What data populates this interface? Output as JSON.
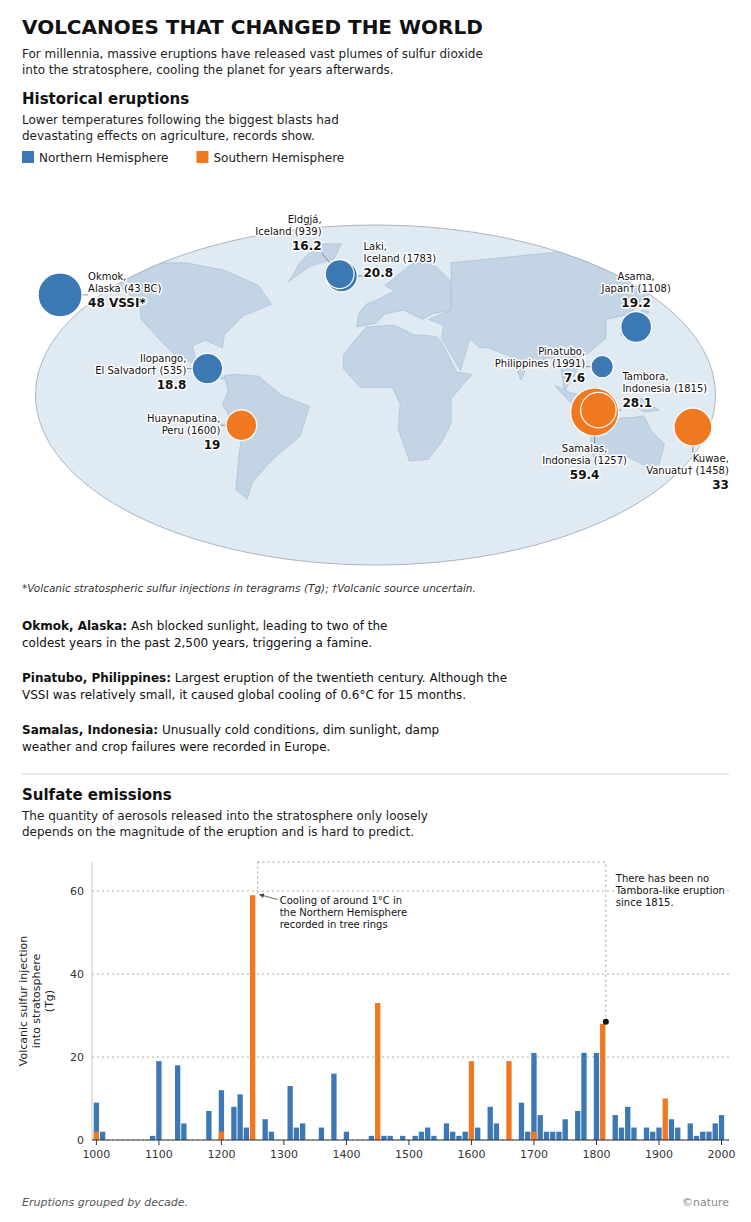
{
  "title": "VOLCANOES THAT CHANGED THE WORLD",
  "subtitle": "For millennia, massive eruptions have released vast plumes of sulfur dioxide\ninto the stratosphere, cooling the planet for years afterwards.",
  "source": "©nature",
  "chart_data": [
    {
      "type": "map",
      "title": "Historical eruptions",
      "subtitle": "Lower temperatures following the biggest blasts had\ndevastating effects on agriculture, records show.",
      "xlim": [
        -180,
        180
      ],
      "ylim": [
        -90,
        90
      ],
      "tick_labels": false,
      "legend": "top left",
      "series": [
        {
          "name": "Northern Hemisphere",
          "color": "#3c78b4",
          "labels": [
            "Okmok,\nAlaska (43 BC)",
            "Eldgjá,\nIceland (939)",
            "Laki,\nIceland (1783)",
            "Asama,\nJapan† (1108)",
            "Ilopango,\nEl Salvador† (535)",
            "Pinatubo,\nPhilippines (1991)"
          ],
          "values": [
            48,
            16.2,
            20.8,
            19.2,
            18.8,
            7.6
          ],
          "value_labels": [
            "48 VSSI*",
            "16.2",
            "20.8",
            "19.2",
            "18.8",
            "7.6"
          ],
          "lon": [
            -167,
            -19,
            -18,
            138,
            -89,
            120
          ],
          "lat": [
            53,
            64,
            63,
            36,
            14,
            15
          ]
        },
        {
          "name": "Southern Hemisphere",
          "color": "#f07820",
          "labels": [
            "Kuwae,\nVanuatu† (1458)",
            "Huaynaputina,\nPeru (1600)",
            "Samalas,\nIndonesia (1257)",
            "Tambora,\nIndonesia (1815)"
          ],
          "values": [
            33,
            19,
            59.4,
            28.1
          ],
          "value_labels": [
            "33",
            "19",
            "59.4",
            "28.1"
          ],
          "lon": [
            168,
            -71,
            116,
            118
          ],
          "lat": [
            -17,
            -16,
            -9,
            -8
          ]
        }
      ],
      "footnote": "*Volcanic stratospheric sulfur injections in teragrams (Tg); †Volcanic source uncertain.",
      "annotations": [
        {
          "bold": "Okmok, Alaska:",
          "text": " Ash blocked sunlight, leading to two of the\ncoldest years in the past 2,500 years, triggering a famine."
        },
        {
          "bold": "Pinatubo, Philippines:",
          "text": " Largest eruption of the twentieth century. Although the\nVSSI was relatively small, it caused global cooling of 0.6°C for 15 months."
        },
        {
          "bold": "Samalas, Indonesia:",
          "text": " Unusually cold conditions, dim sunlight, damp\nweather and crop failures were recorded in Europe."
        }
      ]
    },
    {
      "type": "bar",
      "title": "Sulfate emissions",
      "subtitle": "The quantity of aerosols released into the stratosphere only loosely\ndepends on the magnitude of the eruption and is hard to predict.",
      "ylabel": "Volcanic sulfur injection\ninto stratosphere\n(Tg)",
      "x": [
        1000,
        1010,
        1020,
        1030,
        1040,
        1050,
        1060,
        1070,
        1080,
        1090,
        1100,
        1110,
        1120,
        1130,
        1140,
        1150,
        1160,
        1170,
        1180,
        1190,
        1200,
        1210,
        1220,
        1230,
        1240,
        1250,
        1260,
        1270,
        1280,
        1290,
        1300,
        1310,
        1320,
        1330,
        1340,
        1350,
        1360,
        1370,
        1380,
        1390,
        1400,
        1410,
        1420,
        1430,
        1440,
        1450,
        1460,
        1470,
        1480,
        1490,
        1500,
        1510,
        1520,
        1530,
        1540,
        1550,
        1560,
        1570,
        1580,
        1590,
        1600,
        1610,
        1620,
        1630,
        1640,
        1650,
        1660,
        1670,
        1680,
        1690,
        1700,
        1710,
        1720,
        1730,
        1740,
        1750,
        1760,
        1770,
        1780,
        1790,
        1800,
        1810,
        1820,
        1830,
        1840,
        1850,
        1860,
        1870,
        1880,
        1890,
        1900,
        1910,
        1920,
        1930,
        1940,
        1950,
        1960,
        1970,
        1980,
        1990,
        2000
      ],
      "xlim": [
        993,
        2012
      ],
      "xticks": [
        1000,
        1100,
        1200,
        1300,
        1400,
        1500,
        1600,
        1700,
        1800,
        1900,
        2000
      ],
      "ylim": [
        0,
        67
      ],
      "yticks": [
        0,
        20,
        40,
        60
      ],
      "grid": true,
      "series": [
        {
          "color": "#3c78b4",
          "values": [
            9,
            2,
            0,
            0,
            0,
            0,
            0,
            0,
            0,
            1,
            19,
            0,
            0,
            18,
            4,
            0,
            0,
            0,
            7,
            0,
            12,
            0,
            8,
            11,
            3,
            0,
            0,
            5,
            2,
            0,
            0,
            13,
            3,
            4,
            0,
            0,
            3,
            0,
            16,
            0,
            2,
            0,
            0,
            0,
            1,
            0,
            1,
            1,
            0,
            1,
            0,
            1,
            2,
            3,
            1,
            0,
            4,
            2,
            1,
            2,
            2,
            3,
            0,
            8,
            4,
            0,
            0,
            0,
            9,
            2,
            21,
            6,
            2,
            2,
            2,
            5,
            0,
            7,
            21,
            0,
            21,
            0,
            0,
            6,
            3,
            8,
            3,
            0,
            3,
            2,
            3,
            0,
            5,
            3,
            0,
            4,
            1,
            2,
            2,
            4,
            6
          ]
        },
        {
          "color": "#f07820",
          "values": [
            2,
            0,
            0,
            0,
            0,
            0,
            0,
            0,
            0,
            0,
            0,
            0,
            0,
            0,
            0,
            0,
            0,
            0,
            0,
            0,
            2,
            0,
            0,
            0,
            0,
            59,
            0,
            0,
            0,
            0,
            0,
            0,
            0,
            0,
            0,
            0,
            0,
            0,
            0,
            0,
            0,
            0,
            0,
            0,
            0,
            33,
            0,
            0,
            0,
            0,
            0,
            0,
            0,
            0,
            0,
            0,
            0,
            0,
            0,
            0,
            19,
            0,
            0,
            0,
            0,
            0,
            19,
            0,
            0,
            0,
            2,
            0,
            0,
            0,
            0,
            0,
            0,
            0,
            0,
            0,
            0,
            28,
            0,
            0,
            0,
            0,
            0,
            0,
            0,
            0,
            0,
            10,
            0,
            0,
            0,
            0,
            0,
            0,
            0,
            0,
            0
          ]
        }
      ],
      "annotations": [
        {
          "text": "Cooling of around 1°C in\nthe Northern Hemisphere\nrecorded in tree rings",
          "x": 1258,
          "y": 59.4
        },
        {
          "text": "There has been no\nTambora-like eruption\nsince 1815.",
          "x": 1815,
          "y": 28.5
        }
      ],
      "footnote": "Eruptions grouped by decade."
    }
  ]
}
